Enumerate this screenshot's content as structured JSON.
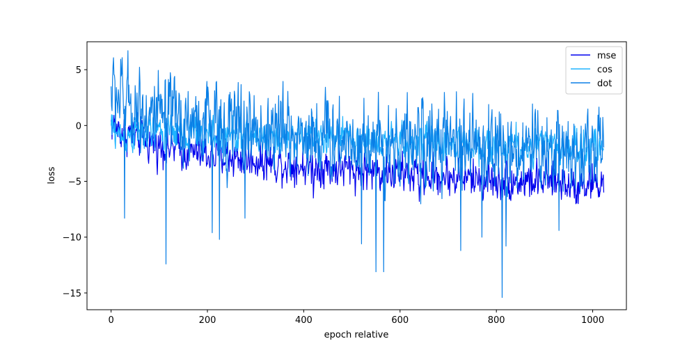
{
  "chart_data": {
    "type": "line",
    "title": "",
    "xlabel": "epoch relative",
    "ylabel": "loss",
    "xlim": [
      -50,
      1070
    ],
    "ylim": [
      -16.5,
      7.5
    ],
    "xticks": [
      0,
      200,
      400,
      600,
      800,
      1000
    ],
    "xtick_labels": [
      "0",
      "200",
      "400",
      "600",
      "800",
      "1000"
    ],
    "yticks": [
      5,
      0,
      -5,
      -10,
      -15
    ],
    "ytick_labels": [
      "5",
      "0",
      "−5",
      "−10",
      "−15"
    ],
    "grid": false,
    "legend_position": "top-right",
    "n_points": 1024,
    "series": [
      {
        "name": "mse",
        "color": "#0000ee",
        "trend": [
          [
            0,
            0.2
          ],
          [
            20,
            -0.5
          ],
          [
            100,
            -1.8
          ],
          [
            200,
            -2.6
          ],
          [
            400,
            -3.6
          ],
          [
            600,
            -4.3
          ],
          [
            800,
            -4.9
          ],
          [
            1023,
            -5.2
          ]
        ],
        "noise": 1.1,
        "spikes": [
          [
            420,
            -6.5
          ],
          [
            640,
            -6.8
          ],
          [
            970,
            -7.0
          ]
        ]
      },
      {
        "name": "cos",
        "color": "#1fb4ff",
        "trend": [
          [
            0,
            -0.2
          ],
          [
            20,
            -1.0
          ],
          [
            100,
            -0.6
          ],
          [
            200,
            -0.8
          ],
          [
            400,
            -1.1
          ],
          [
            600,
            -1.5
          ],
          [
            800,
            -1.8
          ],
          [
            1023,
            -2.0
          ]
        ],
        "noise": 1.0,
        "spikes": []
      },
      {
        "name": "dot",
        "color": "#0a7fe6",
        "trend": [
          [
            0,
            3.2
          ],
          [
            20,
            2.5
          ],
          [
            100,
            0.5
          ],
          [
            200,
            0.2
          ],
          [
            400,
            -0.8
          ],
          [
            600,
            -1.6
          ],
          [
            800,
            -2.0
          ],
          [
            1023,
            -2.2
          ]
        ],
        "noise": 2.4,
        "spikes": [
          [
            28,
            -8.3
          ],
          [
            114,
            -12.4
          ],
          [
            210,
            -9.6
          ],
          [
            225,
            -10.2
          ],
          [
            278,
            -8.3
          ],
          [
            520,
            -10.6
          ],
          [
            550,
            -13.1
          ],
          [
            566,
            -13.1
          ],
          [
            726,
            -11.2
          ],
          [
            770,
            -10.0
          ],
          [
            812,
            -15.4
          ],
          [
            820,
            -10.8
          ],
          [
            930,
            -9.4
          ]
        ]
      }
    ]
  }
}
